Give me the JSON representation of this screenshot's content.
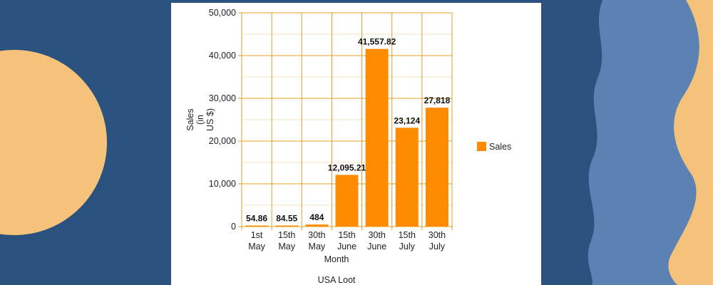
{
  "chart_data": {
    "type": "bar",
    "categories": [
      [
        "1st",
        "May"
      ],
      [
        "15th",
        "May"
      ],
      [
        "30th",
        "May"
      ],
      [
        "15th",
        "June"
      ],
      [
        "30th",
        "June"
      ],
      [
        "15th",
        "July"
      ],
      [
        "30th",
        "July"
      ]
    ],
    "series": [
      {
        "name": "Sales",
        "values": [
          54.86,
          84.55,
          484,
          12095.21,
          41557.82,
          23124,
          27818
        ],
        "labels": [
          "54.86",
          "84.55",
          "484",
          "12,095.21",
          "41,557.82",
          "23,124",
          "27,818"
        ]
      }
    ],
    "title": "USA Loot",
    "xlabel": "Month",
    "ylabel_lines": [
      "Sales",
      "(in",
      "US $)"
    ],
    "ylim": [
      0,
      50000
    ],
    "yticks": [
      0,
      10000,
      20000,
      30000,
      40000,
      50000
    ],
    "ytick_labels": [
      "0",
      "10,000",
      "20,000",
      "30,000",
      "40,000",
      "50,000"
    ],
    "grid": true,
    "legend_position": "right",
    "colors": {
      "bar": "#ff8c00",
      "grid_major": "#e0a020",
      "grid_minor": "#f3e6bf",
      "background": "#2b527f",
      "accent": "#f4c27a"
    }
  }
}
